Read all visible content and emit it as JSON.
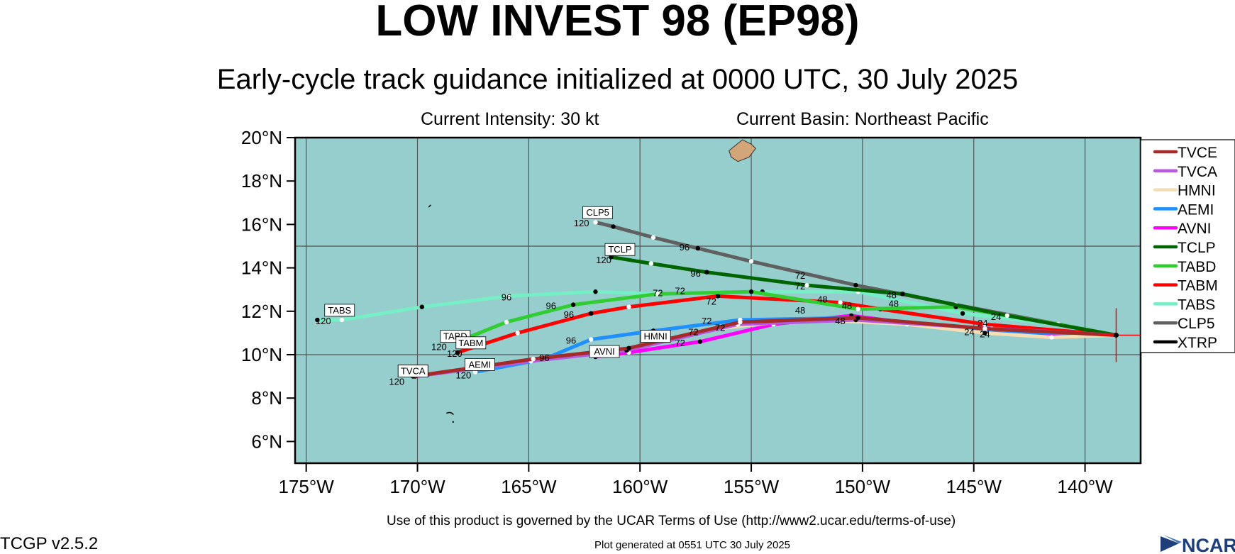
{
  "title": "LOW INVEST 98 (EP98)",
  "subtitle": "Early-cycle track guidance initialized at 0000 UTC, 30 July 2025",
  "intensity": "Current Intensity: 30 kt",
  "basin": "Current Basin: Northeast Pacific",
  "footer": {
    "terms": "Use of this product is governed by the UCAR Terms of Use (http://www2.ucar.edu/terms-of-use)",
    "generated": "Plot generated at 0551 UTC   30 July 2025",
    "version": "TCGP v2.5.2",
    "logo": "NCAR"
  },
  "colors": {
    "ocean": "#96cdcd",
    "land": "#d2a679",
    "grid": "#555555"
  },
  "chart_data": {
    "type": "line",
    "xlim": [
      -175.5,
      -137.5
    ],
    "ylim": [
      5,
      20
    ],
    "xticks": [
      -175,
      -170,
      -165,
      -160,
      -155,
      -150,
      -145,
      -140
    ],
    "xtick_labels": [
      "175°W",
      "170°W",
      "165°W",
      "160°W",
      "155°W",
      "150°W",
      "145°W",
      "140°W"
    ],
    "yticks": [
      6,
      8,
      10,
      12,
      14,
      16,
      18,
      20
    ],
    "ytick_labels": [
      "6°N",
      "8°N",
      "10°N",
      "12°N",
      "14°N",
      "16°N",
      "18°N",
      "20°N"
    ],
    "grid": true,
    "legend_position": "right",
    "origin": {
      "lon": -138.6,
      "lat": 10.9
    },
    "series": [
      {
        "name": "TVCE",
        "color": "#a52a2a",
        "points": [
          [
            -138.6,
            10.9
          ],
          [
            -144.5,
            11.2
          ],
          [
            -150.2,
            11.7
          ],
          [
            -155.5,
            11.5
          ],
          [
            -160.5,
            10.3
          ],
          [
            -164.8,
            9.8
          ],
          [
            -170.2,
            9.0
          ]
        ],
        "label_pt": [
          -170.2,
          9.0
        ]
      },
      {
        "name": "TVCA",
        "color": "#b85ae0",
        "points": [
          [
            -138.6,
            10.9
          ],
          [
            -144.2,
            11.2
          ],
          [
            -150.3,
            11.6
          ],
          [
            -155.6,
            11.4
          ],
          [
            -160.6,
            10.2
          ],
          [
            -164.9,
            9.7
          ],
          [
            -170.1,
            9.0
          ]
        ],
        "label_pt": [
          -170.2,
          9.0
        ],
        "end_label": "120"
      },
      {
        "name": "HMNI",
        "color": "#f5deb3",
        "points": [
          [
            -138.6,
            10.9
          ],
          [
            -141.5,
            10.8
          ],
          [
            -144.5,
            11.0
          ],
          [
            -148.0,
            11.4
          ],
          [
            -151.8,
            11.6
          ],
          [
            -153.8,
            11.5
          ],
          [
            -156.5,
            11.2
          ],
          [
            -158.8,
            10.7
          ]
        ],
        "label_pt": [
          -159.3,
          10.6
        ]
      },
      {
        "name": "AEMI",
        "color": "#1e90ff",
        "points": [
          [
            -138.6,
            10.9
          ],
          [
            -144.5,
            11.1
          ],
          [
            -150.3,
            11.7
          ],
          [
            -155.5,
            11.6
          ],
          [
            -159.4,
            11.1
          ],
          [
            -162.2,
            10.7
          ],
          [
            -164.3,
            9.8
          ],
          [
            -167.4,
            9.2
          ]
        ],
        "label_pt": [
          -167.2,
          9.3
        ],
        "end_label": "120"
      },
      {
        "name": "AVNI",
        "color": "#ff00ff",
        "points": [
          [
            -138.6,
            10.9
          ],
          [
            -144.5,
            11.0
          ],
          [
            -150.5,
            11.8
          ],
          [
            -154.0,
            11.4
          ],
          [
            -157.3,
            10.6
          ],
          [
            -160.5,
            10.1
          ],
          [
            -162.0,
            9.9
          ]
        ],
        "label_pt": [
          -161.6,
          9.9
        ]
      },
      {
        "name": "TCLP",
        "color": "#006400",
        "points": [
          [
            -138.6,
            10.9
          ],
          [
            -143.5,
            11.8
          ],
          [
            -148.2,
            12.8
          ],
          [
            -152.5,
            13.2
          ],
          [
            -157.0,
            13.8
          ],
          [
            -159.5,
            14.2
          ],
          [
            -161.3,
            14.5
          ]
        ],
        "label_pt": [
          -160.9,
          14.6
        ],
        "end_label": "120"
      },
      {
        "name": "TABD",
        "color": "#32cd32",
        "points": [
          [
            -138.6,
            10.9
          ],
          [
            -141.2,
            11.4
          ],
          [
            -145.8,
            12.2
          ],
          [
            -150.2,
            12.1
          ],
          [
            -155.0,
            12.9
          ],
          [
            -159.2,
            12.8
          ],
          [
            -163.0,
            12.3
          ],
          [
            -166.0,
            11.5
          ],
          [
            -168.2,
            10.6
          ]
        ],
        "label_pt": [
          -168.3,
          10.6
        ],
        "end_label": "120"
      },
      {
        "name": "TABM",
        "color": "#ff0000",
        "points": [
          [
            -138.6,
            10.9
          ],
          [
            -144.5,
            11.4
          ],
          [
            -149.2,
            12.1
          ],
          [
            -151.0,
            12.4
          ],
          [
            -156.5,
            12.7
          ],
          [
            -160.5,
            12.2
          ],
          [
            -162.2,
            11.9
          ],
          [
            -165.5,
            11.0
          ],
          [
            -168.2,
            10.1
          ]
        ],
        "label_pt": [
          -167.6,
          10.3
        ],
        "end_label": "120"
      },
      {
        "name": "TABS",
        "color": "#76eec6",
        "points": [
          [
            -138.6,
            10.9
          ],
          [
            -141.2,
            11.4
          ],
          [
            -145.5,
            11.9
          ],
          [
            -150.2,
            12.9
          ],
          [
            -154.5,
            12.9
          ],
          [
            -159.3,
            12.8
          ],
          [
            -162.0,
            12.9
          ],
          [
            -165.9,
            12.7
          ],
          [
            -169.8,
            12.2
          ],
          [
            -173.4,
            11.6
          ],
          [
            -174.5,
            11.6
          ]
        ],
        "label_pt": [
          -173.5,
          11.8
        ],
        "end_label": "120"
      },
      {
        "name": "CLP5",
        "color": "#606060",
        "points": [
          [
            -138.6,
            10.9
          ],
          [
            -145.8,
            12.3
          ],
          [
            -150.3,
            13.2
          ],
          [
            -155.0,
            14.3
          ],
          [
            -157.4,
            14.9
          ],
          [
            -159.4,
            15.4
          ],
          [
            -161.2,
            15.9
          ],
          [
            -162.0,
            16.1
          ]
        ],
        "label_pt": [
          -161.9,
          16.3
        ],
        "end_label": "120"
      },
      {
        "name": "XTRP",
        "color": "#000000",
        "points": [
          [
            -138.6,
            10.9
          ]
        ],
        "label_pt": [
          -138.6,
          10.9
        ]
      }
    ],
    "track_labels": [
      {
        "text": "96",
        "lon": -158.0,
        "lat": 14.8
      },
      {
        "text": "96",
        "lon": -157.5,
        "lat": 13.6
      },
      {
        "text": "72",
        "lon": -152.8,
        "lat": 13.5
      },
      {
        "text": "72",
        "lon": -152.8,
        "lat": 13.0
      },
      {
        "text": "72",
        "lon": -159.2,
        "lat": 12.7
      },
      {
        "text": "72",
        "lon": -158.2,
        "lat": 12.8
      },
      {
        "text": "72",
        "lon": -156.8,
        "lat": 12.3
      },
      {
        "text": "96",
        "lon": -166.0,
        "lat": 12.5
      },
      {
        "text": "96",
        "lon": -164.0,
        "lat": 12.1
      },
      {
        "text": "96",
        "lon": -163.2,
        "lat": 11.7
      },
      {
        "text": "48",
        "lon": -148.7,
        "lat": 12.6
      },
      {
        "text": "48",
        "lon": -148.6,
        "lat": 12.2
      },
      {
        "text": "48",
        "lon": -151.8,
        "lat": 12.4
      },
      {
        "text": "48",
        "lon": -150.7,
        "lat": 12.1
      },
      {
        "text": "48",
        "lon": -152.8,
        "lat": 11.9
      },
      {
        "text": "48",
        "lon": -151.0,
        "lat": 11.4
      },
      {
        "text": "72",
        "lon": -157.0,
        "lat": 11.4
      },
      {
        "text": "72",
        "lon": -156.4,
        "lat": 11.1
      },
      {
        "text": "72",
        "lon": -157.6,
        "lat": 10.9
      },
      {
        "text": "72",
        "lon": -158.2,
        "lat": 10.4
      },
      {
        "text": "96",
        "lon": -163.1,
        "lat": 10.5
      },
      {
        "text": "96",
        "lon": -164.3,
        "lat": 9.7
      },
      {
        "text": "24",
        "lon": -145.2,
        "lat": 10.9
      },
      {
        "text": "24",
        "lon": -144.5,
        "lat": 10.8
      },
      {
        "text": "24",
        "lon": -144.6,
        "lat": 11.3
      },
      {
        "text": "24",
        "lon": -144.0,
        "lat": 11.6
      }
    ],
    "island": [
      [
        -156.0,
        19.4
      ],
      [
        -155.4,
        19.9
      ],
      [
        -155.0,
        19.7
      ],
      [
        -154.8,
        19.5
      ],
      [
        -155.1,
        19.1
      ],
      [
        -155.6,
        18.9
      ],
      [
        -155.9,
        19.1
      ]
    ]
  }
}
